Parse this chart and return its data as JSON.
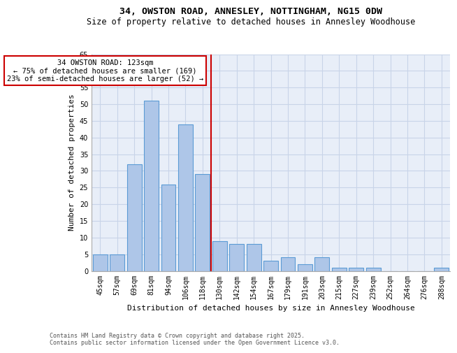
{
  "title_line1": "34, OWSTON ROAD, ANNESLEY, NOTTINGHAM, NG15 0DW",
  "title_line2": "Size of property relative to detached houses in Annesley Woodhouse",
  "xlabel": "Distribution of detached houses by size in Annesley Woodhouse",
  "ylabel": "Number of detached properties",
  "categories": [
    "45sqm",
    "57sqm",
    "69sqm",
    "81sqm",
    "94sqm",
    "106sqm",
    "118sqm",
    "130sqm",
    "142sqm",
    "154sqm",
    "167sqm",
    "179sqm",
    "191sqm",
    "203sqm",
    "215sqm",
    "227sqm",
    "239sqm",
    "252sqm",
    "264sqm",
    "276sqm",
    "288sqm"
  ],
  "values": [
    5,
    5,
    32,
    51,
    26,
    44,
    29,
    9,
    8,
    8,
    3,
    4,
    2,
    4,
    1,
    1,
    1,
    0,
    0,
    0,
    1
  ],
  "bar_color": "#aec6e8",
  "bar_edge_color": "#5b9bd5",
  "annotation_text_line1": "34 OWSTON ROAD: 123sqm",
  "annotation_text_line2": "← 75% of detached houses are smaller (169)",
  "annotation_text_line3": "23% of semi-detached houses are larger (52) →",
  "annotation_box_color": "#ffffff",
  "annotation_box_edge_color": "#cc0000",
  "vline_color": "#cc0000",
  "vline_x_index": 6.5,
  "ylim": [
    0,
    65
  ],
  "yticks": [
    0,
    5,
    10,
    15,
    20,
    25,
    30,
    35,
    40,
    45,
    50,
    55,
    60,
    65
  ],
  "grid_color": "#c8d4e8",
  "bg_color": "#e8eef8",
  "footer_text": "Contains HM Land Registry data © Crown copyright and database right 2025.\nContains public sector information licensed under the Open Government Licence v3.0.",
  "title_fontsize": 9.5,
  "subtitle_fontsize": 8.5,
  "axis_label_fontsize": 8,
  "tick_fontsize": 7,
  "annotation_fontsize": 7.5,
  "footer_fontsize": 6
}
